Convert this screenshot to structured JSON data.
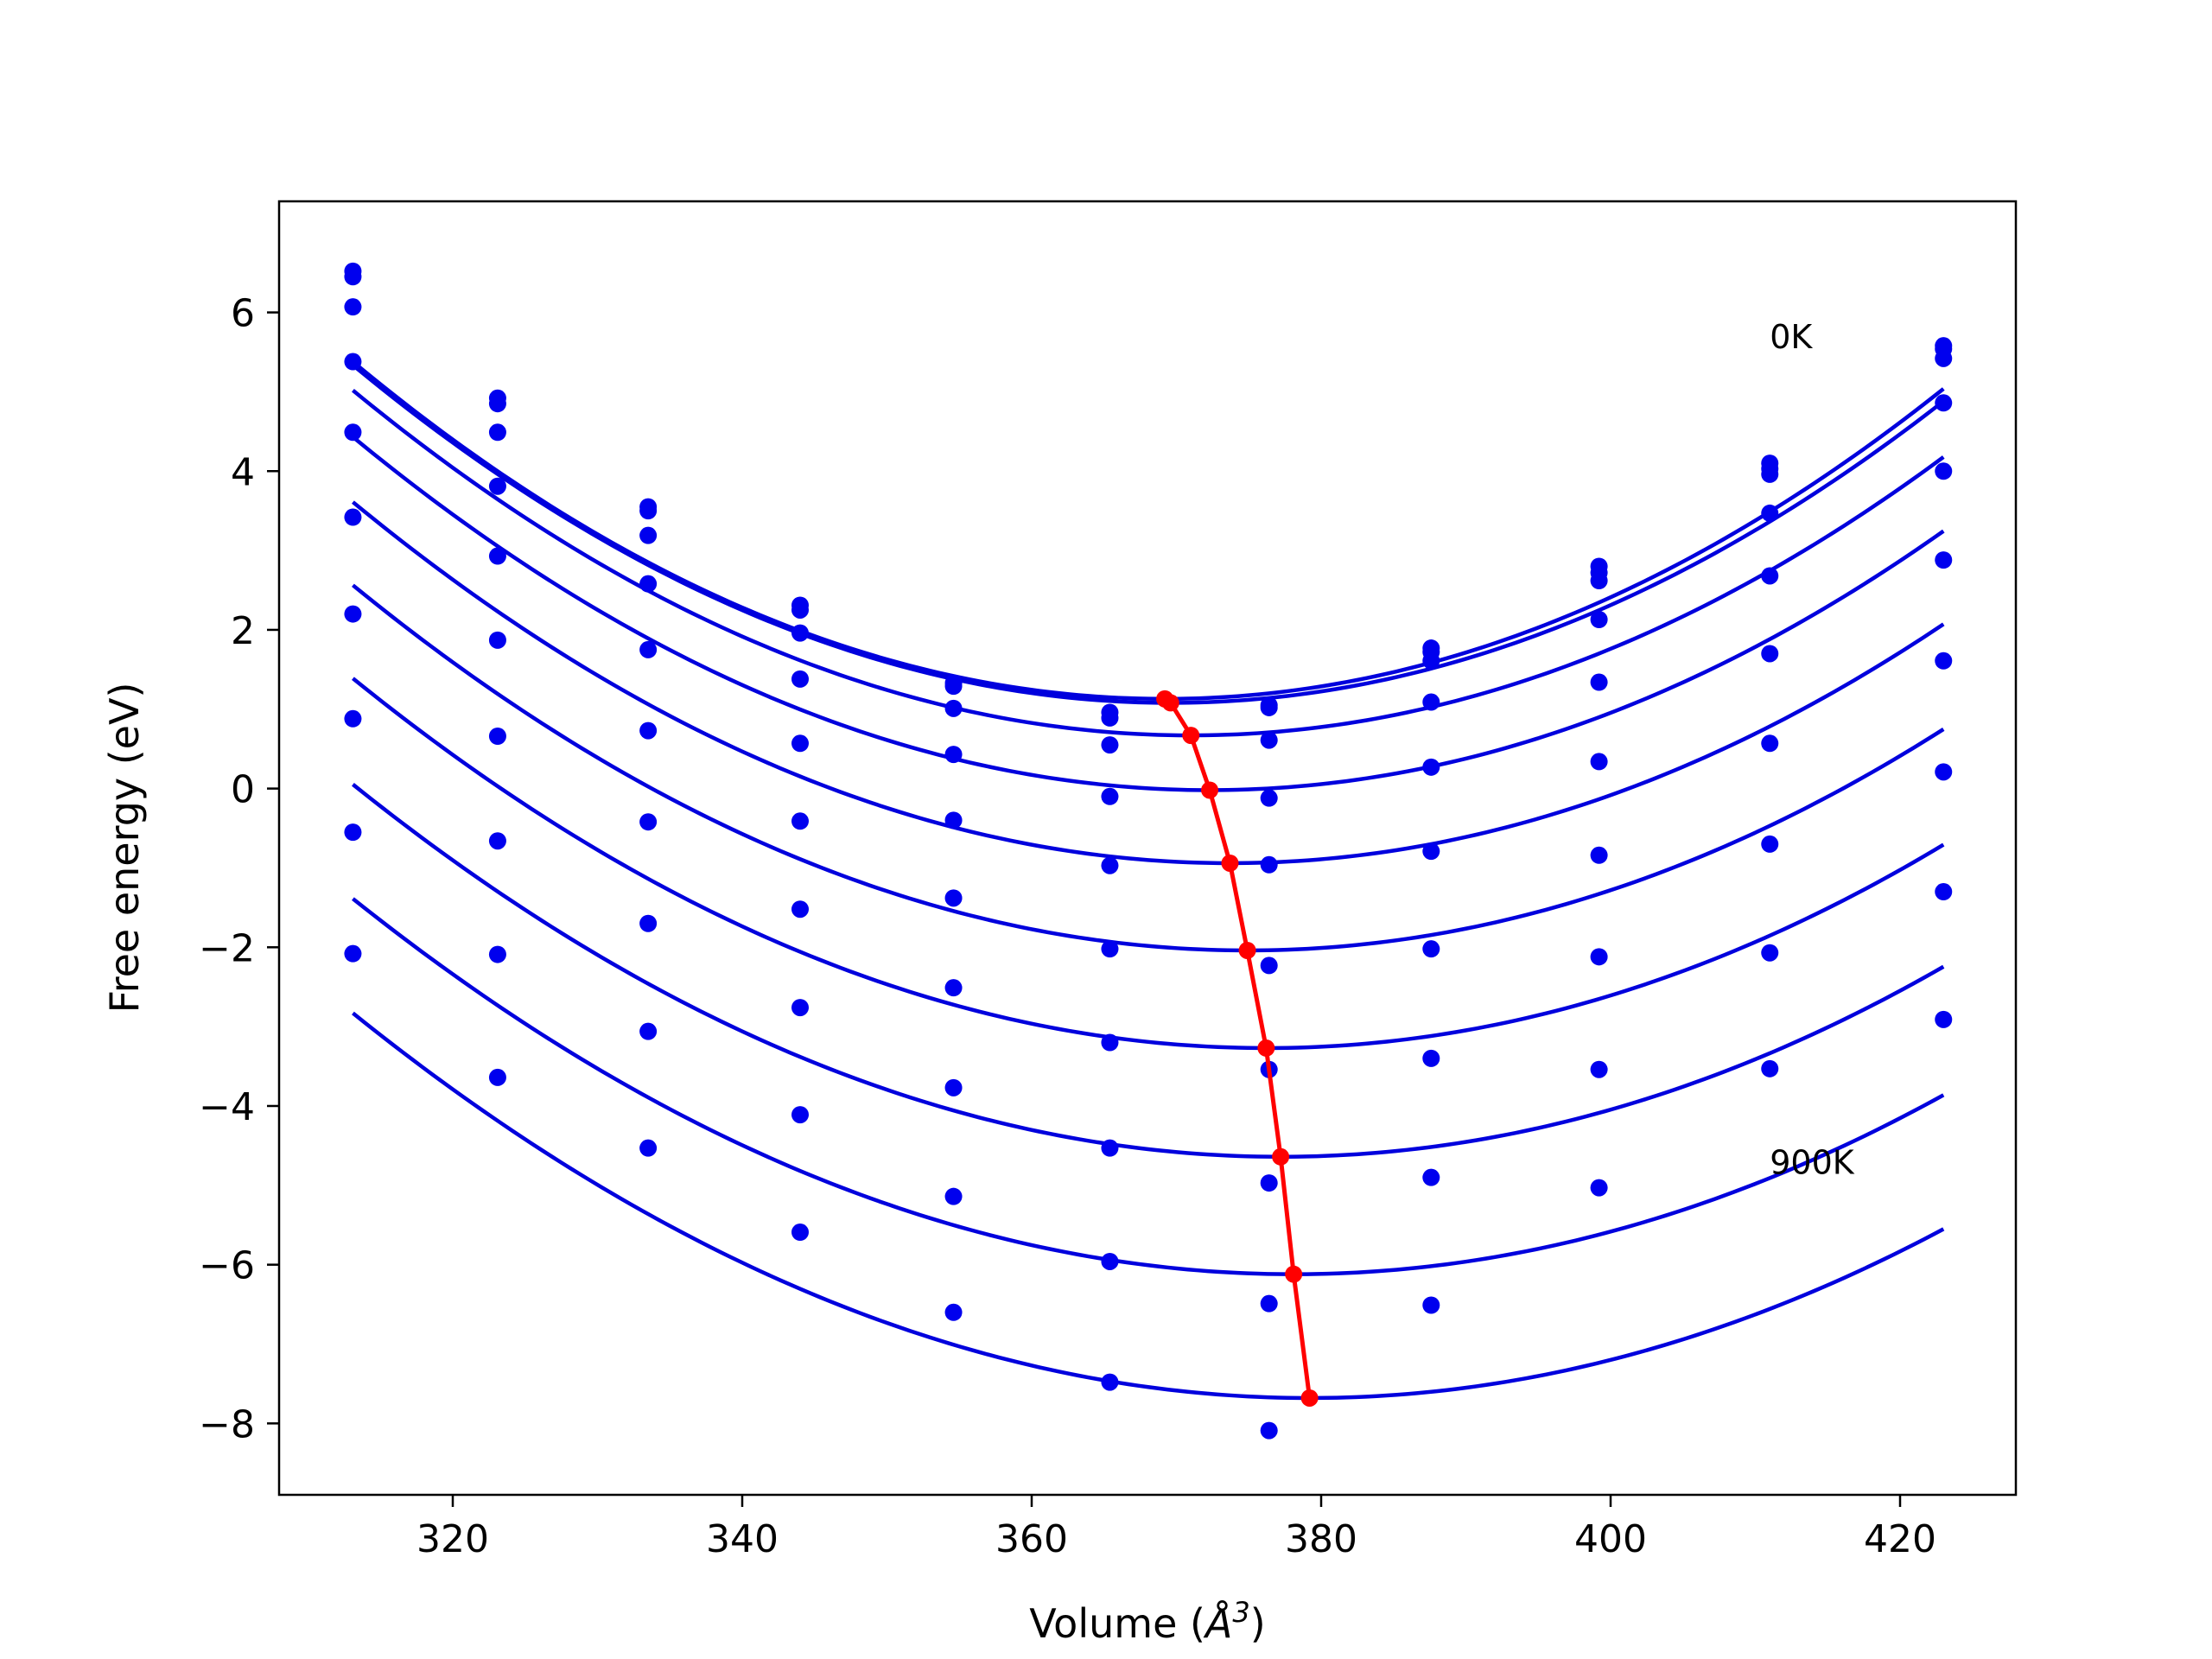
{
  "chart_data": {
    "type": "scatter",
    "title": "",
    "xlabel": "Volume (",
    "xlabel_symbol": "Å",
    "xlabel_exponent": "3",
    "xlabel_close": ")",
    "ylabel": "Free energy (eV)",
    "xlim": [
      308,
      428
    ],
    "ylim": [
      -8.9,
      7.4
    ],
    "xticks": [
      320,
      340,
      360,
      380,
      400,
      420
    ],
    "yticks": [
      -8,
      -6,
      -4,
      -2,
      0,
      2,
      4,
      6
    ],
    "ytick_labels": [
      "−8",
      "−6",
      "−4",
      "−2",
      "0",
      "2",
      "4",
      "6"
    ],
    "grid": false,
    "colors": {
      "fit": "#0000dd",
      "points": "#0000ee",
      "minima": "#ff0000",
      "axes": "#000000"
    },
    "annotations": [
      {
        "text": "0K",
        "x": 411,
        "y": 5.7
      },
      {
        "text": "900K",
        "x": 411,
        "y": -4.7
      }
    ],
    "x": [
      313.1,
      323.1,
      333.5,
      344.0,
      354.6,
      365.4,
      376.4,
      387.6,
      399.2,
      411.0,
      423.0
    ],
    "fit_range": [
      313.1,
      423.0
    ],
    "series": [
      {
        "points": [
          6.52,
          4.92,
          3.55,
          2.31,
          1.33,
          0.96,
          1.05,
          1.77,
          2.8,
          4.1,
          5.58
        ],
        "fit": {
          "a": 0.00135,
          "v0": 369.2,
          "e0": 1.13
        }
      },
      {
        "points": [
          6.45,
          4.85,
          3.5,
          2.25,
          1.29,
          0.89,
          1.02,
          1.72,
          2.72,
          4.03,
          5.54
        ],
        "fit": {
          "a": 0.001333,
          "v0": 369.6,
          "e0": 1.08
        }
      },
      {
        "points": [
          6.07,
          4.49,
          3.19,
          1.96,
          1.01,
          0.55,
          0.61,
          1.61,
          2.62,
          3.96,
          5.42
        ],
        "fit": {
          "a": 0.001297,
          "v0": 371.0,
          "e0": 0.67
        }
      },
      {
        "points": [
          5.38,
          3.81,
          2.58,
          1.38,
          0.43,
          -0.1,
          -0.12,
          1.09,
          2.13,
          3.47,
          4.86
        ],
        "fit": {
          "a": 0.00127,
          "v0": 372.3,
          "e0": -0.02
        }
      },
      {
        "points": [
          4.49,
          2.93,
          1.75,
          0.57,
          -0.4,
          -0.97,
          -0.96,
          0.27,
          1.34,
          2.68,
          4.0
        ],
        "fit": {
          "a": 0.001239,
          "v0": 373.7,
          "e0": -0.94
        }
      },
      {
        "points": [
          3.42,
          1.87,
          0.73,
          -0.41,
          -1.38,
          -2.02,
          -2.23,
          -0.79,
          0.34,
          1.7,
          2.88
        ],
        "fit": {
          "a": 0.001205,
          "v0": 374.9,
          "e0": -2.04
        }
      },
      {
        "points": [
          2.2,
          0.66,
          -0.42,
          -1.52,
          -2.51,
          -3.2,
          -3.54,
          -2.02,
          -0.84,
          0.57,
          1.61
        ],
        "fit": {
          "a": 0.00117,
          "v0": 376.2,
          "e0": -3.27
        }
      },
      {
        "points": [
          0.88,
          -0.66,
          -1.7,
          -2.76,
          -3.77,
          -4.53,
          -4.97,
          -3.4,
          -2.12,
          -0.7,
          0.21
        ],
        "fit": {
          "a": 0.001142,
          "v0": 377.2,
          "e0": -4.64
        }
      },
      {
        "points": [
          -0.55,
          -2.09,
          -3.06,
          -4.11,
          -5.14,
          -5.96,
          -6.49,
          -4.9,
          -3.54,
          -2.07,
          -1.3
        ],
        "fit": {
          "a": 0.00112,
          "v0": 378.1,
          "e0": -6.12
        }
      },
      {
        "points": [
          -2.08,
          -3.64,
          -4.53,
          -5.59,
          -6.6,
          -7.48,
          -8.09,
          -6.51,
          -5.03,
          -3.53,
          -2.91
        ],
        "fit": {
          "a": 0.00111,
          "v0": 379.2,
          "e0": -7.68
        }
      }
    ],
    "minima": {
      "x": [
        369.2,
        369.6,
        371.0,
        372.3,
        373.7,
        374.9,
        376.2,
        377.2,
        378.1,
        379.2
      ],
      "y": [
        1.13,
        1.08,
        0.67,
        -0.02,
        -0.94,
        -2.04,
        -3.27,
        -4.64,
        -6.12,
        -7.68
      ]
    }
  }
}
